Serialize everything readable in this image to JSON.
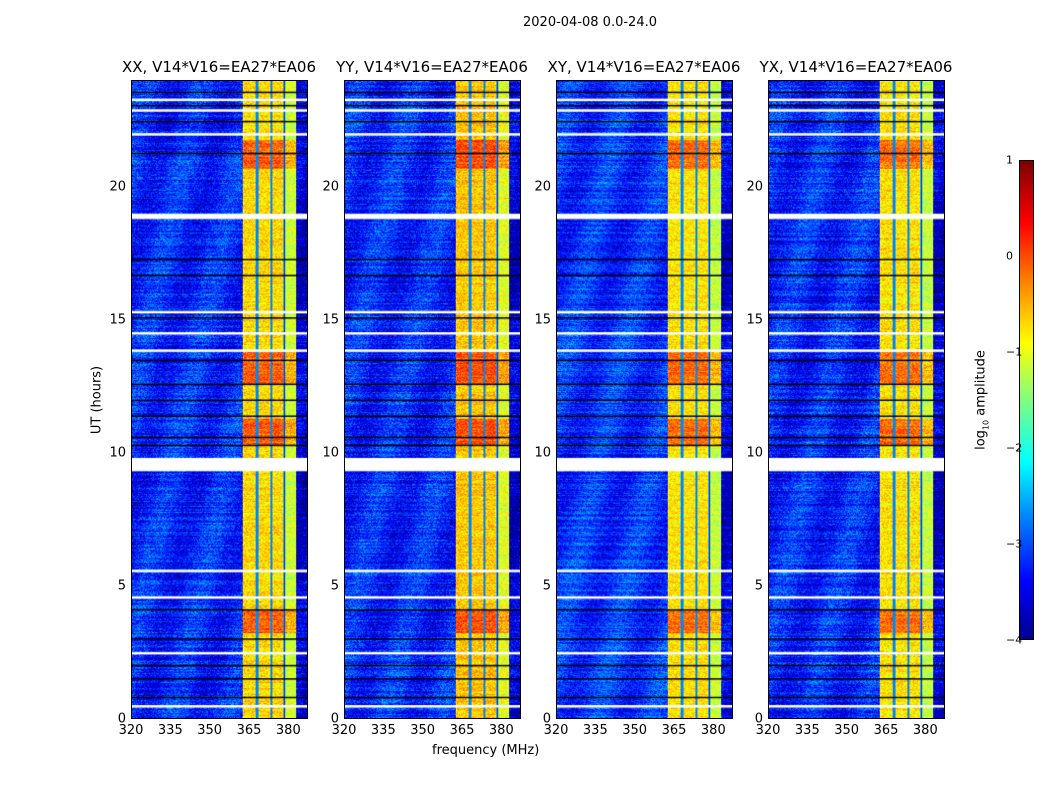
{
  "figure_title": "2020-04-08 0.0-24.0",
  "chart_data": {
    "type": "heatmap",
    "xlabel": "frequency (MHz)",
    "ylabel": "UT (hours)",
    "xlim": [
      320,
      387.5
    ],
    "ylim": [
      0,
      24
    ],
    "xticks": [
      "320",
      "335",
      "350",
      "365",
      "380"
    ],
    "xtick_values": [
      320,
      335,
      350,
      365,
      380
    ],
    "yticks": [
      "0",
      "5",
      "10",
      "15",
      "20"
    ],
    "ytick_values": [
      0,
      5,
      10,
      15,
      20
    ],
    "colorbar": {
      "label_prefix": "log",
      "label_sub": "10",
      "label_suffix": " amplitude",
      "range": [
        -4,
        1
      ],
      "ticks": [
        "1",
        "0",
        "−1",
        "−2",
        "−3",
        "−4"
      ],
      "tick_values": [
        1,
        0,
        -1,
        -2,
        -3,
        -4
      ],
      "colormap": "jet"
    },
    "rfi_band_mhz": [
      362.7,
      383.0
    ],
    "rfi_subband_edges_mhz": [
      368,
      373.5,
      378.5
    ],
    "background_log_amp": -3.2,
    "band_log_amp": -0.7,
    "hot_periods_hours": [
      [
        3.2,
        4.1
      ],
      [
        10.3,
        11.3
      ],
      [
        12.6,
        13.8
      ],
      [
        20.7,
        21.8
      ]
    ],
    "flagged_rows_hours": [
      0.45,
      2.45,
      4.55,
      5.55,
      [
        9.3,
        9.8
      ],
      13.85,
      14.5,
      15.3,
      [
        18.8,
        19.0
      ],
      22.0,
      22.9,
      23.3
    ],
    "dark_rows_hours": [
      0.8,
      1.5,
      2.0,
      3.0,
      4.1,
      10.3,
      10.6,
      11.4,
      12.0,
      12.6,
      13.5,
      15.1,
      16.7,
      17.3,
      21.3,
      22.5,
      23.1,
      23.6
    ],
    "panels": [
      {
        "title": "XX, V14*V16=EA27*EA06",
        "seed": 11,
        "gain": 0.0
      },
      {
        "title": "YY, V14*V16=EA27*EA06",
        "seed": 23,
        "gain": 0.1
      },
      {
        "title": "XY, V14*V16=EA27*EA06",
        "seed": 37,
        "gain": -0.1
      },
      {
        "title": "YX, V14*V16=EA27*EA06",
        "seed": 51,
        "gain": -0.05
      }
    ]
  }
}
